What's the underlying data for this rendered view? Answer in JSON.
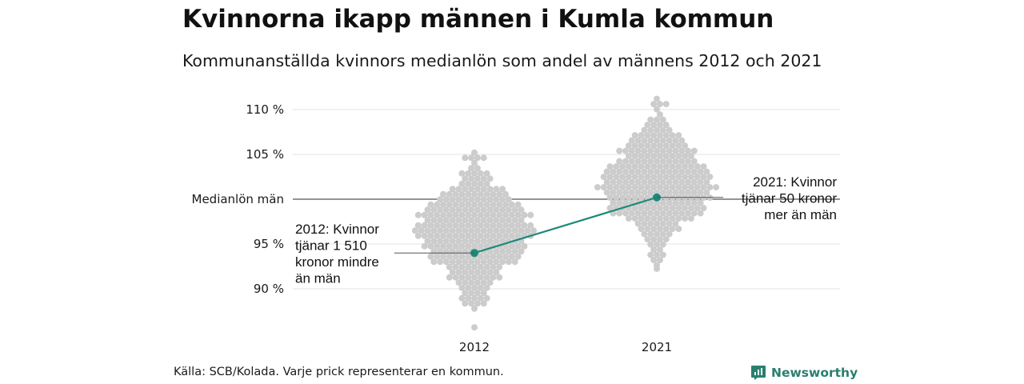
{
  "title": "Kvinnorna ikapp männen i Kumla kommun",
  "subtitle": "Kommunanställda kvinnors medianlön som andel av männens 2012 och 2021",
  "source": "Källa: SCB/Kolada. Varje prick representerar en kommun.",
  "brand": {
    "name": "Newsworthy",
    "icon": "newsworthy-logo-icon",
    "color": "#2a7f6f"
  },
  "colors": {
    "dots": "#cccccc",
    "highlight": "#1b8a7a",
    "grid": "#e3e3e3",
    "reference": "#555555"
  },
  "chart_data": {
    "type": "scatter",
    "x_categories": [
      "2012",
      "2021"
    ],
    "y_ticks": [
      {
        "value": 90,
        "label": "90 %"
      },
      {
        "value": 95,
        "label": "95 %"
      },
      {
        "value": 100,
        "label": "Medianlön män"
      },
      {
        "value": 105,
        "label": "105 %"
      },
      {
        "value": 110,
        "label": "110 %"
      }
    ],
    "ylim": [
      86,
      112
    ],
    "grid": true,
    "reference_line": {
      "value": 100,
      "label": "Medianlön män"
    },
    "distribution": [
      {
        "category": "2012",
        "min": 87.3,
        "max": 105.2,
        "median": 96.5
      },
      {
        "category": "2021",
        "min": 92.6,
        "max": 111.2,
        "median": 101.5
      }
    ],
    "highlight": {
      "name": "Kumla",
      "points": [
        {
          "x": "2012",
          "y": 94
        },
        {
          "x": "2021",
          "y": 100.2
        }
      ]
    },
    "annotations": [
      {
        "x": "2012",
        "lines": [
          "2012: Kvinnor",
          "tjänar 1 510",
          "kronor mindre",
          "än män"
        ]
      },
      {
        "x": "2021",
        "lines": [
          "2021: Kvinnor",
          "tjänar 50 kronor",
          "mer än män"
        ]
      }
    ]
  }
}
